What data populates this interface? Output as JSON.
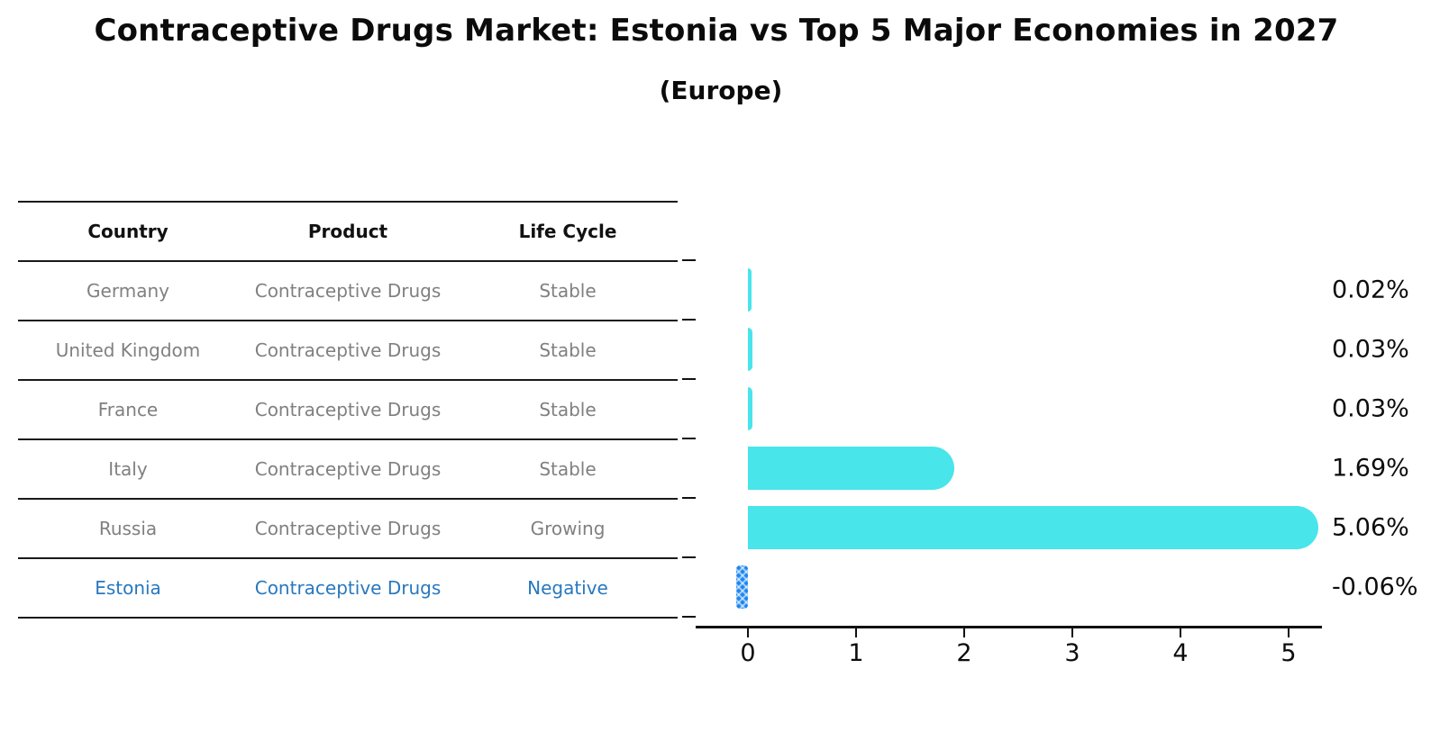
{
  "title": "Contraceptive Drugs Market: Estonia vs Top 5 Major Economies in 2027",
  "subtitle": "(Europe)",
  "table": {
    "headers": [
      "Country",
      "Product",
      "Life Cycle"
    ],
    "rows": [
      {
        "country": "Germany",
        "product": "Contraceptive Drugs",
        "life_cycle": "Stable",
        "highlight": false
      },
      {
        "country": "United Kingdom",
        "product": "Contraceptive Drugs",
        "life_cycle": "Stable",
        "highlight": false
      },
      {
        "country": "France",
        "product": "Contraceptive Drugs",
        "life_cycle": "Stable",
        "highlight": false
      },
      {
        "country": "Italy",
        "product": "Contraceptive Drugs",
        "life_cycle": "Stable",
        "highlight": false
      },
      {
        "country": "Russia",
        "product": "Contraceptive Drugs",
        "life_cycle": "Growing",
        "highlight": false
      },
      {
        "country": "Estonia",
        "product": "Contraceptive Drugs",
        "life_cycle": "Negative",
        "highlight": true
      }
    ]
  },
  "chart_data": {
    "type": "bar",
    "orientation": "horizontal",
    "title": "Contraceptive Drugs Market: Estonia vs Top 5 Major Economies in 2027 (Europe)",
    "categories": [
      "Germany",
      "United Kingdom",
      "France",
      "Italy",
      "Russia",
      "Estonia"
    ],
    "values": [
      0.02,
      0.03,
      0.03,
      1.69,
      5.06,
      -0.06
    ],
    "value_labels": [
      "0.02%",
      "0.03%",
      "0.03%",
      "1.69%",
      "5.06%",
      "-0.06%"
    ],
    "x_ticks": [
      0,
      1,
      2,
      3,
      4,
      5
    ],
    "xlim": [
      -0.48,
      5.31
    ],
    "grid": false,
    "legend": "none",
    "bar_color": "#48e5eb",
    "highlight_index": 5,
    "highlight_color": "#1e87f0",
    "highlight_hatch": "x"
  },
  "colors": {
    "background": "#ffffff",
    "bar_cyan": "#48e5eb",
    "bar_blue": "#1e87f0",
    "table_text_gray": "#808080",
    "table_text_blue": "#2878be",
    "line_black": "#1a1a1a"
  }
}
